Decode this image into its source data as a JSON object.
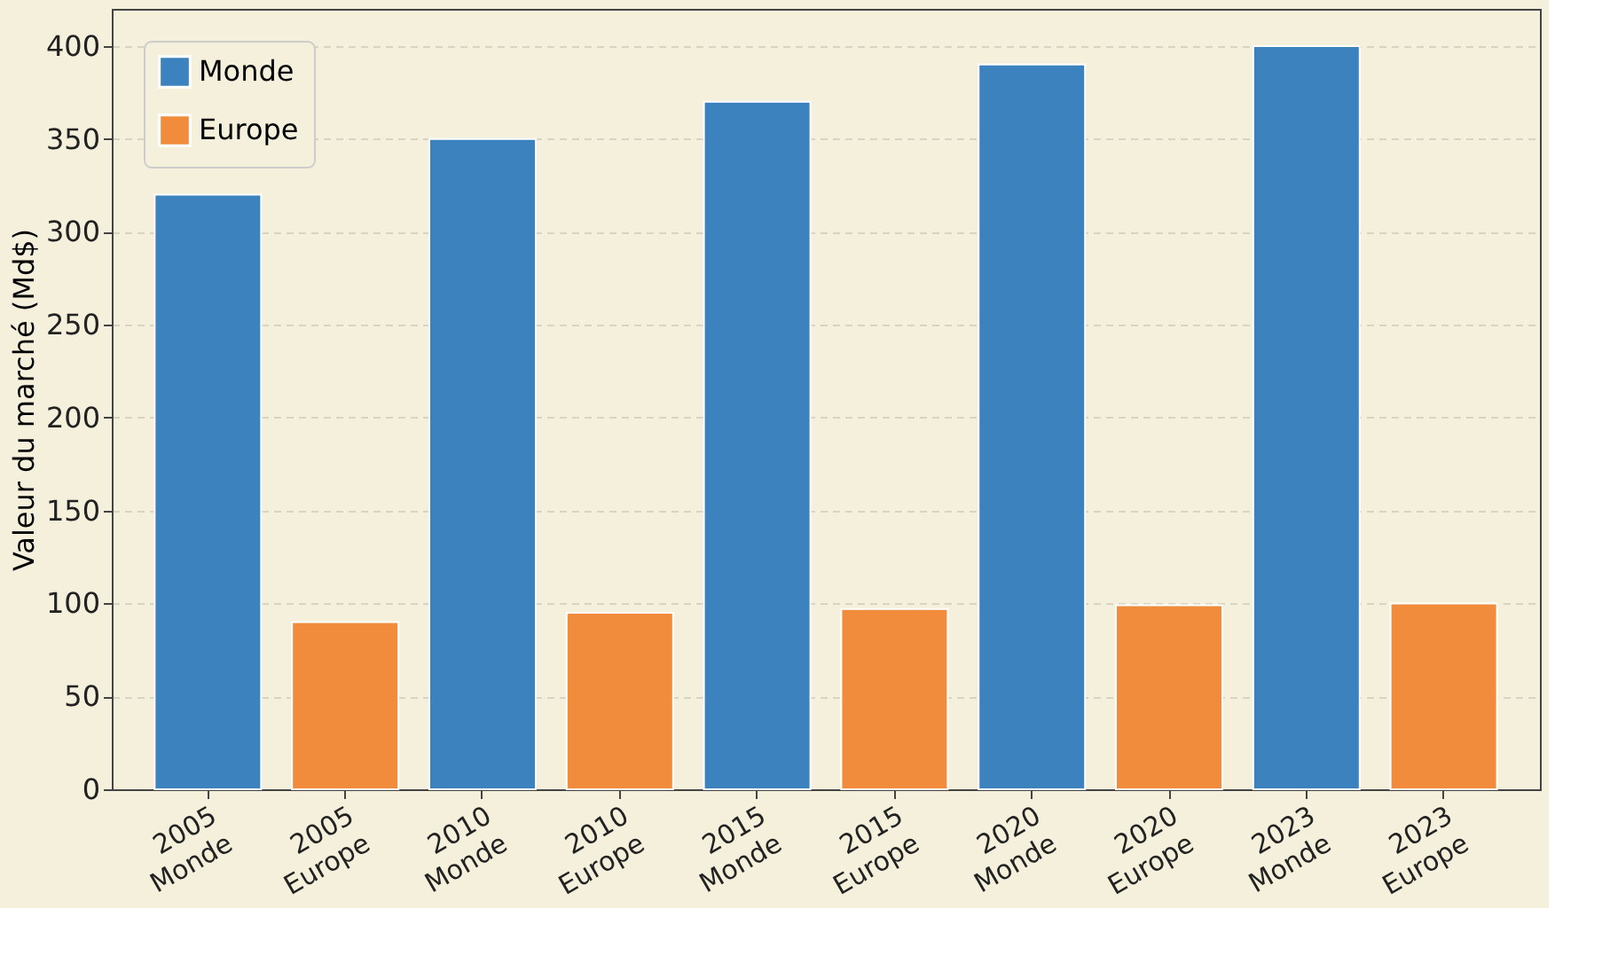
{
  "chart_data": {
    "type": "bar",
    "ylabel": "Valeur du marché (Md$)",
    "categories": [
      "2005\nMonde",
      "2005\nEurope",
      "2010\nMonde",
      "2010\nEurope",
      "2015\nMonde",
      "2015\nEurope",
      "2020\nMonde",
      "2020\nEurope",
      "2023\nMonde",
      "2023\nEurope"
    ],
    "series": [
      {
        "name": "Monde",
        "color": "#3b82bf",
        "values": [
          320,
          null,
          350,
          null,
          370,
          null,
          390,
          null,
          400,
          null
        ]
      },
      {
        "name": "Europe",
        "color": "#f08c3c",
        "values": [
          null,
          90,
          null,
          95,
          null,
          97,
          null,
          99,
          null,
          100
        ]
      }
    ],
    "ylim": [
      0,
      420
    ],
    "yticks": [
      0,
      50,
      100,
      150,
      200,
      250,
      300,
      350,
      400
    ],
    "grid": "y",
    "legend": "top left"
  }
}
